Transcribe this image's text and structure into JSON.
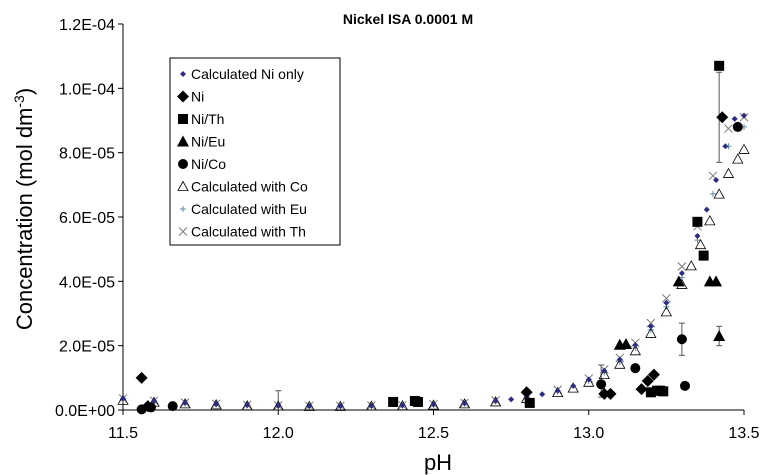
{
  "chart_data": {
    "type": "scatter",
    "title": "Nickel ISA 0.0001 M",
    "xlabel": "pH",
    "ylabel_main": "Concentration (mol dm",
    "ylabel_sup": "-3",
    "ylabel_close": ")",
    "xlim": [
      11.5,
      13.5
    ],
    "ylim": [
      0,
      0.00012
    ],
    "x_ticks": [
      11.5,
      12.0,
      12.5,
      13.0,
      13.5
    ],
    "x_tick_labels": [
      "11.5",
      "12.0",
      "12.5",
      "13.0",
      "13.5"
    ],
    "y_ticks": [
      0,
      2e-05,
      4e-05,
      6e-05,
      8e-05,
      0.0001,
      0.00012
    ],
    "y_tick_labels": [
      "0.0E+00",
      "2.0E-05",
      "4.0E-05",
      "6.0E-05",
      "8.0E-05",
      "1.0E-04",
      "1.2E-04"
    ],
    "grid": false,
    "legend_position": "top-left",
    "series": [
      {
        "name": "Calculated Ni only",
        "marker": "small-diamond",
        "color": "#2b2b8a",
        "x": [
          11.5,
          11.6,
          11.7,
          11.8,
          11.9,
          12.0,
          12.1,
          12.2,
          12.3,
          12.4,
          12.5,
          12.6,
          12.7,
          12.75,
          12.8,
          12.85,
          12.9,
          12.95,
          13.0,
          13.05,
          13.1,
          13.15,
          13.2,
          13.25,
          13.3,
          13.35,
          13.38,
          13.41,
          13.44,
          13.47,
          13.5
        ],
        "y": [
          3.5e-06,
          2.8e-06,
          2.2e-06,
          1.8e-06,
          1.5e-06,
          1.3e-06,
          1.2e-06,
          1.2e-06,
          1.3e-06,
          1.4e-06,
          1.7e-06,
          2.1e-06,
          2.8e-06,
          3.3e-06,
          4e-06,
          4.9e-06,
          6e-06,
          7.5e-06,
          9.5e-06,
          1.22e-05,
          1.57e-05,
          2.02e-05,
          2.6e-05,
          3.33e-05,
          4.25e-05,
          5.41e-05,
          6.23e-05,
          7.15e-05,
          8.2e-05,
          9.05e-05,
          9.15e-05
        ]
      },
      {
        "name": "Ni",
        "marker": "diamond",
        "color": "#000000",
        "x": [
          11.56,
          11.58,
          12.8,
          13.05,
          13.07,
          13.17,
          13.19,
          13.21,
          13.43
        ],
        "y": [
          1e-05,
          1.2e-06,
          5.5e-06,
          5e-06,
          5e-06,
          6.5e-06,
          9e-06,
          1.1e-05,
          9.1e-05
        ]
      },
      {
        "name": "Ni/Th",
        "marker": "square",
        "color": "#000000",
        "x": [
          12.37,
          12.44,
          12.45,
          12.81,
          13.2,
          13.22,
          13.23,
          13.24,
          13.35,
          13.37,
          13.42
        ],
        "y": [
          2.5e-06,
          2.8e-06,
          2.5e-06,
          2.2e-06,
          5.5e-06,
          6e-06,
          6e-06,
          5.8e-06,
          5.85e-05,
          4.8e-05,
          0.000107
        ]
      },
      {
        "name": "Ni/Eu",
        "marker": "triangle",
        "color": "#000000",
        "x": [
          13.1,
          13.12,
          13.29,
          13.39,
          13.41,
          13.42
        ],
        "y": [
          2.03e-05,
          2.05e-05,
          4e-05,
          4e-05,
          4e-05,
          2.3e-05
        ]
      },
      {
        "name": "Ni/Co",
        "marker": "circle",
        "color": "#000000",
        "x": [
          11.56,
          11.59,
          11.66,
          13.04,
          13.15,
          13.3,
          13.31,
          13.48
        ],
        "y": [
          2e-07,
          8e-07,
          1.2e-06,
          8e-06,
          1.3e-05,
          2.2e-05,
          7.5e-06,
          8.8e-05
        ]
      },
      {
        "name": "Calculated with Co",
        "marker": "open-triangle",
        "color": "#000000",
        "x": [
          11.5,
          11.6,
          11.7,
          11.8,
          11.9,
          12.0,
          12.1,
          12.2,
          12.3,
          12.4,
          12.5,
          12.6,
          12.7,
          12.8,
          12.9,
          12.95,
          13.0,
          13.05,
          13.1,
          13.15,
          13.2,
          13.25,
          13.3,
          13.33,
          13.36,
          13.39,
          13.42,
          13.45,
          13.48,
          13.5
        ],
        "y": [
          3e-06,
          2.4e-06,
          1.9e-06,
          1.6e-06,
          1.3e-06,
          1.2e-06,
          1.1e-06,
          1.1e-06,
          1.2e-06,
          1.3e-06,
          1.5e-06,
          1.9e-06,
          2.5e-06,
          3.6e-06,
          5.4e-06,
          6.8e-06,
          8.6e-06,
          1.1e-05,
          1.42e-05,
          1.84e-05,
          2.38e-05,
          3.05e-05,
          3.9e-05,
          4.48e-05,
          5.14e-05,
          5.88e-05,
          6.71e-05,
          7.35e-05,
          7.8e-05,
          8.1e-05
        ]
      },
      {
        "name": "Calculated with Eu",
        "marker": "plus",
        "color": "#5f8fa8",
        "x": [
          11.5,
          11.6,
          11.7,
          11.8,
          11.9,
          12.0,
          12.1,
          12.2,
          12.3,
          12.4,
          12.5,
          12.6,
          12.7,
          12.8,
          12.9,
          13.0,
          13.05,
          13.1,
          13.15,
          13.2,
          13.25,
          13.3,
          13.35,
          13.4,
          13.45,
          13.5
        ],
        "y": [
          3.3e-06,
          2.6e-06,
          2e-06,
          1.7e-06,
          1.4e-06,
          1.2e-06,
          1.1e-06,
          1.1e-06,
          1.2e-06,
          1.4e-06,
          1.6e-06,
          2e-06,
          2.7e-06,
          3.9e-06,
          5.8e-06,
          9e-06,
          1.16e-05,
          1.49e-05,
          1.93e-05,
          2.49e-05,
          3.21e-05,
          4.12e-05,
          5.28e-05,
          6.72e-05,
          8.2e-05,
          8.8e-05
        ]
      },
      {
        "name": "Calculated with Th",
        "marker": "x",
        "color": "#7a7a7a",
        "x": [
          11.5,
          11.6,
          11.7,
          11.8,
          11.9,
          12.0,
          12.1,
          12.2,
          12.3,
          12.4,
          12.5,
          12.6,
          12.7,
          12.8,
          12.9,
          13.0,
          13.05,
          13.1,
          13.15,
          13.2,
          13.25,
          13.3,
          13.35,
          13.4,
          13.45,
          13.5
        ],
        "y": [
          3.6e-06,
          2.9e-06,
          2.3e-06,
          1.9e-06,
          1.6e-06,
          1.4e-06,
          1.3e-06,
          1.3e-06,
          1.4e-06,
          1.5e-06,
          1.8e-06,
          2.2e-06,
          3e-06,
          4.2e-06,
          6.3e-06,
          9.8e-06,
          1.26e-05,
          1.62e-05,
          2.09e-05,
          2.7e-05,
          3.47e-05,
          4.46e-05,
          5.71e-05,
          7.28e-05,
          8.75e-05,
          9.1e-05
        ]
      }
    ],
    "error_bars": [
      {
        "x": 12.0,
        "y": 1.5e-06,
        "low": 0.0,
        "high": 6e-06
      },
      {
        "x": 13.04,
        "y": 8e-06,
        "low": 4e-06,
        "high": 1.4e-05
      },
      {
        "x": 13.3,
        "y": 2.2e-05,
        "low": 1.7e-05,
        "high": 2.7e-05
      },
      {
        "x": 13.42,
        "y": 2.3e-05,
        "low": 2e-05,
        "high": 2.6e-05
      },
      {
        "x": 13.42,
        "y": 9.1e-05,
        "low": 7.7e-05,
        "high": 0.000105
      }
    ]
  }
}
